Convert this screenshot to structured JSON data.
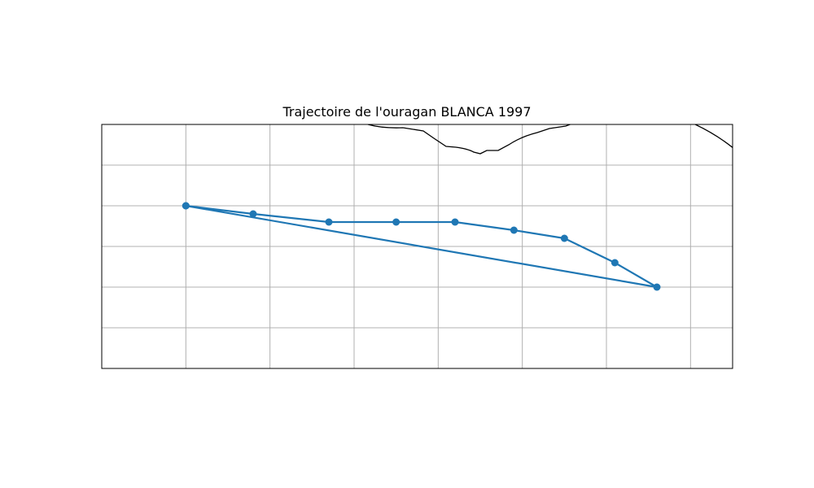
{
  "title": "Trajectoire de l'ouragan BLANCA 1997",
  "chart_data": {
    "type": "map",
    "title": "Trajectoire de l'ouragan BLANCA 1997",
    "grid": true,
    "axis_labels_shown": false,
    "map_extent": {
      "lon": [
        -105,
        -97.5
      ],
      "lat": [
        8,
        11
      ]
    },
    "track_color": "#1f77b4",
    "coastline_color": "#000000",
    "grid_color": "#b0b0b0",
    "series": [
      {
        "type": "line+markers",
        "lon": [
          -104.0,
          -103.2,
          -102.3,
          -101.5,
          -100.8,
          -100.1,
          -99.5,
          -98.9,
          -98.4,
          -104.0
        ],
        "lat": [
          10.0,
          9.9,
          9.8,
          9.8,
          9.8,
          9.7,
          9.6,
          9.3,
          9.0,
          10.0
        ]
      }
    ]
  }
}
